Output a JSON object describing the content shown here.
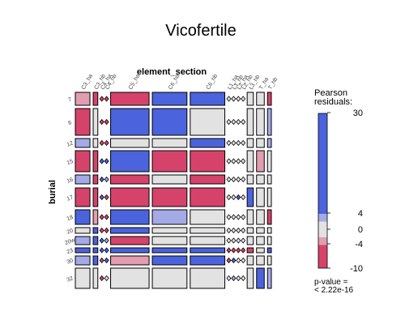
{
  "chart_data": {
    "type": "mosaic",
    "title": "Vicofertile",
    "x_variable": "element_section",
    "y_variable": "burial",
    "x_categories": [
      "C3_ha",
      "C3_hb",
      "C4_ha",
      "C4_hb",
      "C5_ha",
      "C6_ha",
      "C6_hb",
      "L1_ha",
      "L1_hb",
      "L2_ha",
      "L2_hb",
      "L3_hb",
      "T_ha",
      "T_hb"
    ],
    "y_categories": [
      "7",
      "6",
      "12",
      "15",
      "16",
      "17",
      "18",
      "20",
      "20w",
      "23",
      "30",
      "32"
    ],
    "rows": [
      {
        "burial": "7",
        "cells": [
          {
            "x": "C3_ha",
            "residual": -2
          },
          {
            "x": "C3_hb",
            "residual": -5
          },
          {
            "x": "C4_ha",
            "residual": -5
          },
          {
            "x": "C4_hb",
            "residual": -5
          },
          {
            "x": "C5_ha",
            "residual": -5
          },
          {
            "x": "C6_ha",
            "residual": 12
          },
          {
            "x": "C6_hb",
            "residual": 12
          },
          {
            "x": "L1_ha",
            "residual": 0
          },
          {
            "x": "L1_hb",
            "residual": 0
          },
          {
            "x": "L2_ha",
            "residual": 0
          },
          {
            "x": "L2_hb",
            "residual": 0
          },
          {
            "x": "L3_hb",
            "residual": 0
          },
          {
            "x": "T_ha",
            "residual": 0
          },
          {
            "x": "T_hb",
            "residual": -5
          }
        ]
      },
      {
        "burial": "6",
        "cells": [
          {
            "x": "C3_ha",
            "residual": -6
          },
          {
            "x": "C3_hb",
            "residual": 0
          },
          {
            "x": "C4_ha",
            "residual": -5
          },
          {
            "x": "C4_hb",
            "residual": -5
          },
          {
            "x": "C5_ha",
            "residual": 14
          },
          {
            "x": "C6_ha",
            "residual": 20
          },
          {
            "x": "C6_hb",
            "residual": 0
          },
          {
            "x": "L1_ha",
            "residual": 0
          },
          {
            "x": "L1_hb",
            "residual": 0
          },
          {
            "x": "L2_ha",
            "residual": 0
          },
          {
            "x": "L2_hb",
            "residual": 0
          },
          {
            "x": "L3_hb",
            "residual": 0
          },
          {
            "x": "T_ha",
            "residual": 0
          },
          {
            "x": "T_hb",
            "residual": 3
          }
        ]
      },
      {
        "burial": "12",
        "cells": [
          {
            "x": "C3_ha",
            "residual": 3
          },
          {
            "x": "C3_hb",
            "residual": 0
          },
          {
            "x": "C4_ha",
            "residual": -5
          },
          {
            "x": "C4_hb",
            "residual": -5
          },
          {
            "x": "C5_ha",
            "residual": 0
          },
          {
            "x": "C6_ha",
            "residual": 0
          },
          {
            "x": "C6_hb",
            "residual": 6
          },
          {
            "x": "L1_ha",
            "residual": 0
          },
          {
            "x": "L1_hb",
            "residual": 0
          },
          {
            "x": "L2_ha",
            "residual": 0
          },
          {
            "x": "L2_hb",
            "residual": 0
          },
          {
            "x": "L3_hb",
            "residual": 0
          },
          {
            "x": "T_ha",
            "residual": 0
          },
          {
            "x": "T_hb",
            "residual": 3
          }
        ]
      },
      {
        "burial": "15",
        "cells": [
          {
            "x": "C3_ha",
            "residual": -6
          },
          {
            "x": "C3_hb",
            "residual": -6
          },
          {
            "x": "C4_ha",
            "residual": 8
          },
          {
            "x": "C4_hb",
            "residual": 8
          },
          {
            "x": "C5_ha",
            "residual": 8
          },
          {
            "x": "C6_ha",
            "residual": -6
          },
          {
            "x": "C6_hb",
            "residual": -6
          },
          {
            "x": "L1_ha",
            "residual": 0
          },
          {
            "x": "L1_hb",
            "residual": 0
          },
          {
            "x": "L2_ha",
            "residual": 0
          },
          {
            "x": "L2_hb",
            "residual": 0
          },
          {
            "x": "L3_hb",
            "residual": 0
          },
          {
            "x": "T_ha",
            "residual": -3
          },
          {
            "x": "T_hb",
            "residual": 0
          }
        ]
      },
      {
        "burial": "16",
        "cells": [
          {
            "x": "C3_ha",
            "residual": 3
          },
          {
            "x": "C3_hb",
            "residual": -5
          },
          {
            "x": "C4_ha",
            "residual": 8
          },
          {
            "x": "C4_hb",
            "residual": 3
          },
          {
            "x": "C5_ha",
            "residual": -5
          },
          {
            "x": "C6_ha",
            "residual": 0
          },
          {
            "x": "C6_hb",
            "residual": -6
          },
          {
            "x": "L1_ha",
            "residual": 0
          },
          {
            "x": "L1_hb",
            "residual": 0
          },
          {
            "x": "L2_ha",
            "residual": 0
          },
          {
            "x": "L2_hb",
            "residual": 0
          },
          {
            "x": "L3_hb",
            "residual": 0
          },
          {
            "x": "T_ha",
            "residual": 0
          },
          {
            "x": "T_hb",
            "residual": 0
          }
        ]
      },
      {
        "burial": "17",
        "cells": [
          {
            "x": "C3_ha",
            "residual": -6
          },
          {
            "x": "C3_hb",
            "residual": -6
          },
          {
            "x": "C4_ha",
            "residual": 8
          },
          {
            "x": "C4_hb",
            "residual": -6
          },
          {
            "x": "C5_ha",
            "residual": -6
          },
          {
            "x": "C6_ha",
            "residual": -6
          },
          {
            "x": "C6_hb",
            "residual": -6
          },
          {
            "x": "L1_ha",
            "residual": 0
          },
          {
            "x": "L1_hb",
            "residual": 0
          },
          {
            "x": "L2_ha",
            "residual": 8
          },
          {
            "x": "L2_hb",
            "residual": 0
          },
          {
            "x": "L3_hb",
            "residual": 8
          },
          {
            "x": "T_ha",
            "residual": 0
          },
          {
            "x": "T_hb",
            "residual": 0
          }
        ]
      },
      {
        "burial": "18",
        "cells": [
          {
            "x": "C3_ha",
            "residual": 12
          },
          {
            "x": "C3_hb",
            "residual": -3
          },
          {
            "x": "C4_ha",
            "residual": -5
          },
          {
            "x": "C4_hb",
            "residual": -5
          },
          {
            "x": "C5_ha",
            "residual": 12
          },
          {
            "x": "C6_ha",
            "residual": 3
          },
          {
            "x": "C6_hb",
            "residual": 0
          },
          {
            "x": "L1_ha",
            "residual": 0
          },
          {
            "x": "L1_hb",
            "residual": 0
          },
          {
            "x": "L2_ha",
            "residual": 0
          },
          {
            "x": "L2_hb",
            "residual": 0
          },
          {
            "x": "L3_hb",
            "residual": 0
          },
          {
            "x": "T_ha",
            "residual": 0
          },
          {
            "x": "T_hb",
            "residual": -5
          }
        ]
      },
      {
        "burial": "20",
        "cells": [
          {
            "x": "C3_ha",
            "residual": 0
          },
          {
            "x": "C3_hb",
            "residual": 8
          },
          {
            "x": "C4_ha",
            "residual": -5
          },
          {
            "x": "C4_hb",
            "residual": -5
          },
          {
            "x": "C5_ha",
            "residual": 8
          },
          {
            "x": "C6_ha",
            "residual": 0
          },
          {
            "x": "C6_hb",
            "residual": 0
          },
          {
            "x": "L1_ha",
            "residual": 0
          },
          {
            "x": "L1_hb",
            "residual": 0
          },
          {
            "x": "L2_ha",
            "residual": 0
          },
          {
            "x": "L2_hb",
            "residual": 0
          },
          {
            "x": "L3_hb",
            "residual": 0
          },
          {
            "x": "T_ha",
            "residual": 0
          },
          {
            "x": "T_hb",
            "residual": 0
          }
        ]
      },
      {
        "burial": "20w",
        "cells": [
          {
            "x": "C3_ha",
            "residual": 3
          },
          {
            "x": "C3_hb",
            "residual": 8
          },
          {
            "x": "C4_ha",
            "residual": 8
          },
          {
            "x": "C4_hb",
            "residual": 3
          },
          {
            "x": "C5_ha",
            "residual": -6
          },
          {
            "x": "C6_ha",
            "residual": 0
          },
          {
            "x": "C6_hb",
            "residual": 0
          },
          {
            "x": "L1_ha",
            "residual": 0
          },
          {
            "x": "L1_hb",
            "residual": 0
          },
          {
            "x": "L2_ha",
            "residual": 0
          },
          {
            "x": "L2_hb",
            "residual": 0
          },
          {
            "x": "L3_hb",
            "residual": 0
          },
          {
            "x": "T_ha",
            "residual": 0
          },
          {
            "x": "T_hb",
            "residual": 0
          }
        ]
      },
      {
        "burial": "23",
        "cells": [
          {
            "x": "C3_ha",
            "residual": 8
          },
          {
            "x": "C3_hb",
            "residual": 8
          },
          {
            "x": "C4_ha",
            "residual": 8
          },
          {
            "x": "C4_hb",
            "residual": 8
          },
          {
            "x": "C5_ha",
            "residual": 8
          },
          {
            "x": "C6_ha",
            "residual": 8
          },
          {
            "x": "C6_hb",
            "residual": 8
          },
          {
            "x": "L1_ha",
            "residual": -5
          },
          {
            "x": "L1_hb",
            "residual": -5
          },
          {
            "x": "L2_ha",
            "residual": -5
          },
          {
            "x": "L2_hb",
            "residual": -5
          },
          {
            "x": "L3_hb",
            "residual": -5
          },
          {
            "x": "T_ha",
            "residual": 0
          },
          {
            "x": "T_hb",
            "residual": 8
          }
        ]
      },
      {
        "burial": "30",
        "cells": [
          {
            "x": "C3_ha",
            "residual": 3
          },
          {
            "x": "C3_hb",
            "residual": 8
          },
          {
            "x": "C4_ha",
            "residual": -5
          },
          {
            "x": "C4_hb",
            "residual": 8
          },
          {
            "x": "C5_ha",
            "residual": -3
          },
          {
            "x": "C6_ha",
            "residual": 8
          },
          {
            "x": "C6_hb",
            "residual": 8
          },
          {
            "x": "L1_ha",
            "residual": -5
          },
          {
            "x": "L1_hb",
            "residual": 8
          },
          {
            "x": "L2_ha",
            "residual": 0
          },
          {
            "x": "L2_hb",
            "residual": 0
          },
          {
            "x": "L3_hb",
            "residual": 0
          },
          {
            "x": "T_ha",
            "residual": 0
          },
          {
            "x": "T_hb",
            "residual": 0
          }
        ]
      },
      {
        "burial": "32",
        "cells": [
          {
            "x": "C3_ha",
            "residual": 0
          },
          {
            "x": "C3_hb",
            "residual": 0
          },
          {
            "x": "C4_ha",
            "residual": -5
          },
          {
            "x": "C4_hb",
            "residual": 0
          },
          {
            "x": "C5_ha",
            "residual": 0
          },
          {
            "x": "C6_ha",
            "residual": 0
          },
          {
            "x": "C6_hb",
            "residual": 0
          },
          {
            "x": "L1_ha",
            "residual": 0
          },
          {
            "x": "L1_hb",
            "residual": 3
          },
          {
            "x": "L2_ha",
            "residual": 0
          },
          {
            "x": "L2_hb",
            "residual": 0
          },
          {
            "x": "L3_hb",
            "residual": 0
          },
          {
            "x": "T_ha",
            "residual": 8
          },
          {
            "x": "T_hb",
            "residual": 3
          }
        ]
      }
    ],
    "legend": {
      "title": "Pearson\nresiduals:",
      "ticks": [
        30,
        4,
        0,
        -4,
        -10
      ],
      "range": [
        -10,
        30
      ],
      "p_value_text": "p-value =\n< 2.22e-16"
    },
    "colors": {
      "strong_positive": "#4b63dc",
      "mild_positive": "#a3aae6",
      "neutral": "#e2e2e2",
      "mild_negative": "#e29db0",
      "strong_negative": "#d6436a",
      "border": "#000000"
    }
  }
}
